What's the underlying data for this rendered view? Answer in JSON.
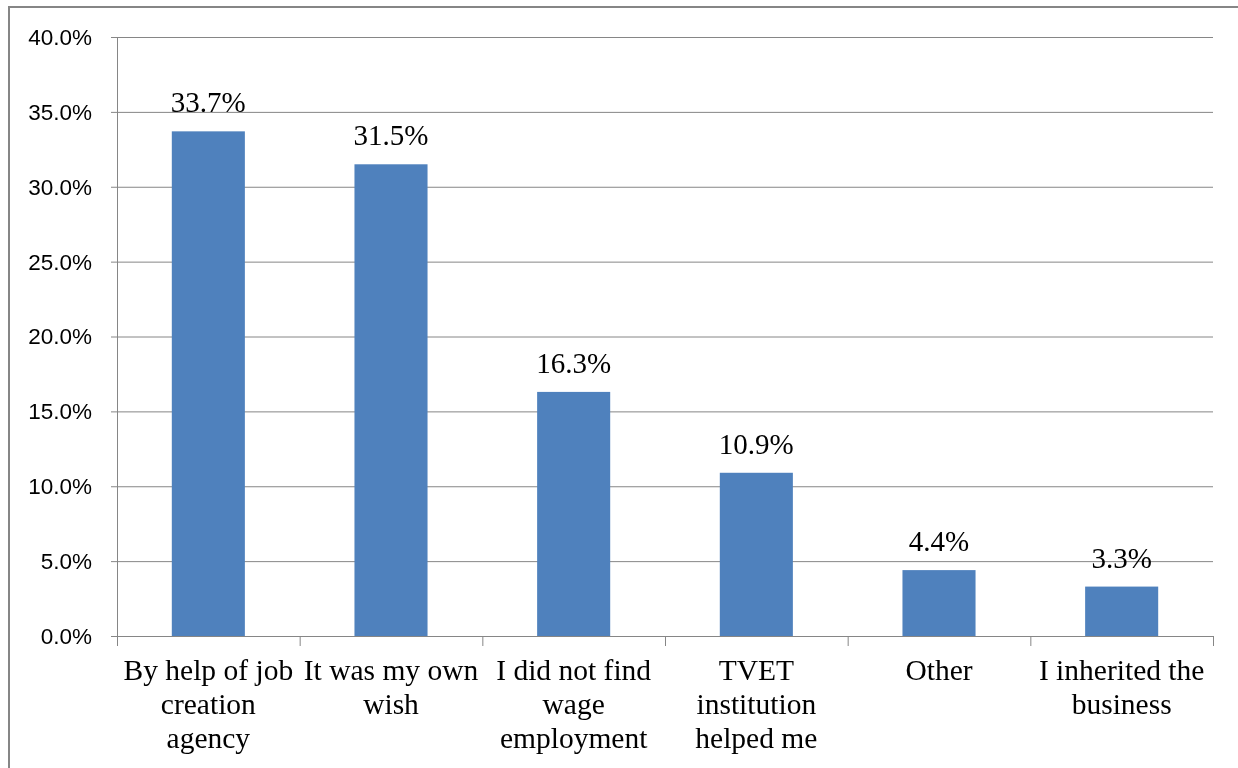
{
  "chart_data": {
    "type": "bar",
    "categories": [
      "By help of job creation agency",
      "It was my own wish",
      "I did not find wage employment",
      "TVET institution helped me",
      "Other",
      "I inherited the business"
    ],
    "values": [
      33.7,
      31.5,
      16.3,
      10.9,
      4.4,
      3.3
    ],
    "value_labels": [
      "33.7%",
      "31.5%",
      "16.3%",
      "10.9%",
      "4.4%",
      "3.3%"
    ],
    "color": "#4f81bd",
    "ylim": [
      0,
      40
    ],
    "yticks": [
      {
        "value": 0,
        "label": "0.0%"
      },
      {
        "value": 5,
        "label": "5.0%"
      },
      {
        "value": 10,
        "label": "10.0%"
      },
      {
        "value": 15,
        "label": "15.0%"
      },
      {
        "value": 20,
        "label": "20.0%"
      },
      {
        "value": 25,
        "label": "25.0%"
      },
      {
        "value": 30,
        "label": "30.0%"
      },
      {
        "value": 35,
        "label": "35.0%"
      },
      {
        "value": 40,
        "label": "40.0%"
      }
    ],
    "grid": "y"
  }
}
